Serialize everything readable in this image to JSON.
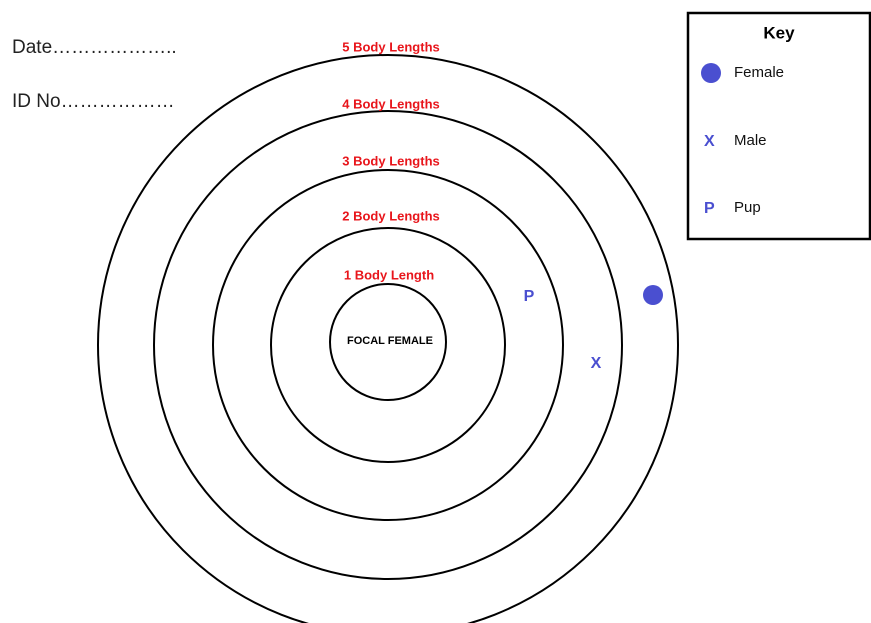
{
  "header": {
    "date": "Date………………..",
    "id_no": "ID No………………"
  },
  "rings": [
    "1 Body Length",
    "2 Body Lengths",
    "3 Body Lengths",
    "4 Body Lengths",
    "5 Body Lengths"
  ],
  "center": "FOCAL FEMALE",
  "key": {
    "title": "Key",
    "items": [
      {
        "symbol": "",
        "label": "Female"
      },
      {
        "symbol": "X",
        "label": "Male"
      },
      {
        "symbol": "P",
        "label": "Pup"
      }
    ]
  },
  "markers": [
    {
      "symbol": "P"
    },
    {
      "symbol": "X"
    }
  ]
}
